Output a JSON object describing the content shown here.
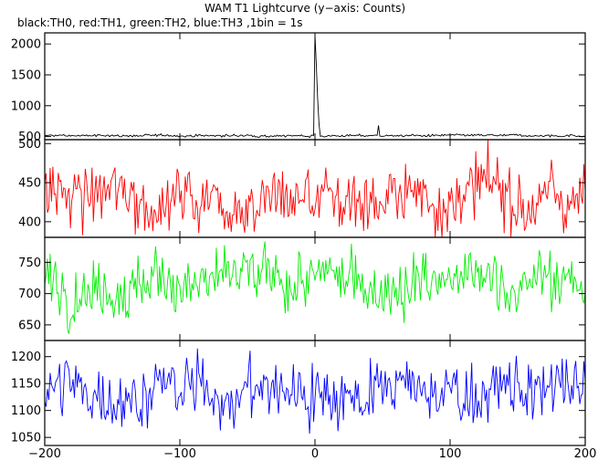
{
  "title": "WAM T1 Lightcurve (y−axis: Counts)",
  "subtitle": "black:TH0, red:TH1, green:TH2, blue:TH3 ,1bin = 1s",
  "chart_data": [
    {
      "type": "line",
      "series_label": "TH0",
      "color": "#000000",
      "ylim": [
        450,
        2180
      ],
      "yticks": [
        500,
        1000,
        1500,
        2000
      ],
      "baseline": 515,
      "noise": 12,
      "events": [
        {
          "x": 0,
          "peak": 2150
        },
        {
          "x": 1,
          "peak": 1650
        },
        {
          "x": 2,
          "peak": 1100
        },
        {
          "x": 3,
          "peak": 700
        },
        {
          "x": 47,
          "peak": 680
        }
      ]
    },
    {
      "type": "line",
      "series_label": "TH1",
      "color": "#ff0000",
      "ylim": [
        380,
        505
      ],
      "yticks": [
        400,
        450,
        500
      ],
      "baseline": 432,
      "noise": 25
    },
    {
      "type": "line",
      "series_label": "TH2",
      "color": "#00ee00",
      "ylim": [
        625,
        790
      ],
      "yticks": [
        650,
        700,
        750
      ],
      "baseline": 718,
      "noise": 28
    },
    {
      "type": "line",
      "series_label": "TH3",
      "color": "#0000ff",
      "ylim": [
        1035,
        1230
      ],
      "yticks": [
        1050,
        1100,
        1150,
        1200
      ],
      "baseline": 1135,
      "noise": 35
    }
  ],
  "x_axis": {
    "range": [
      -200,
      200
    ],
    "ticks": [
      -200,
      -100,
      0,
      100,
      200
    ],
    "tick_labels": [
      "−200",
      "−100",
      "0",
      "100",
      "200"
    ]
  }
}
